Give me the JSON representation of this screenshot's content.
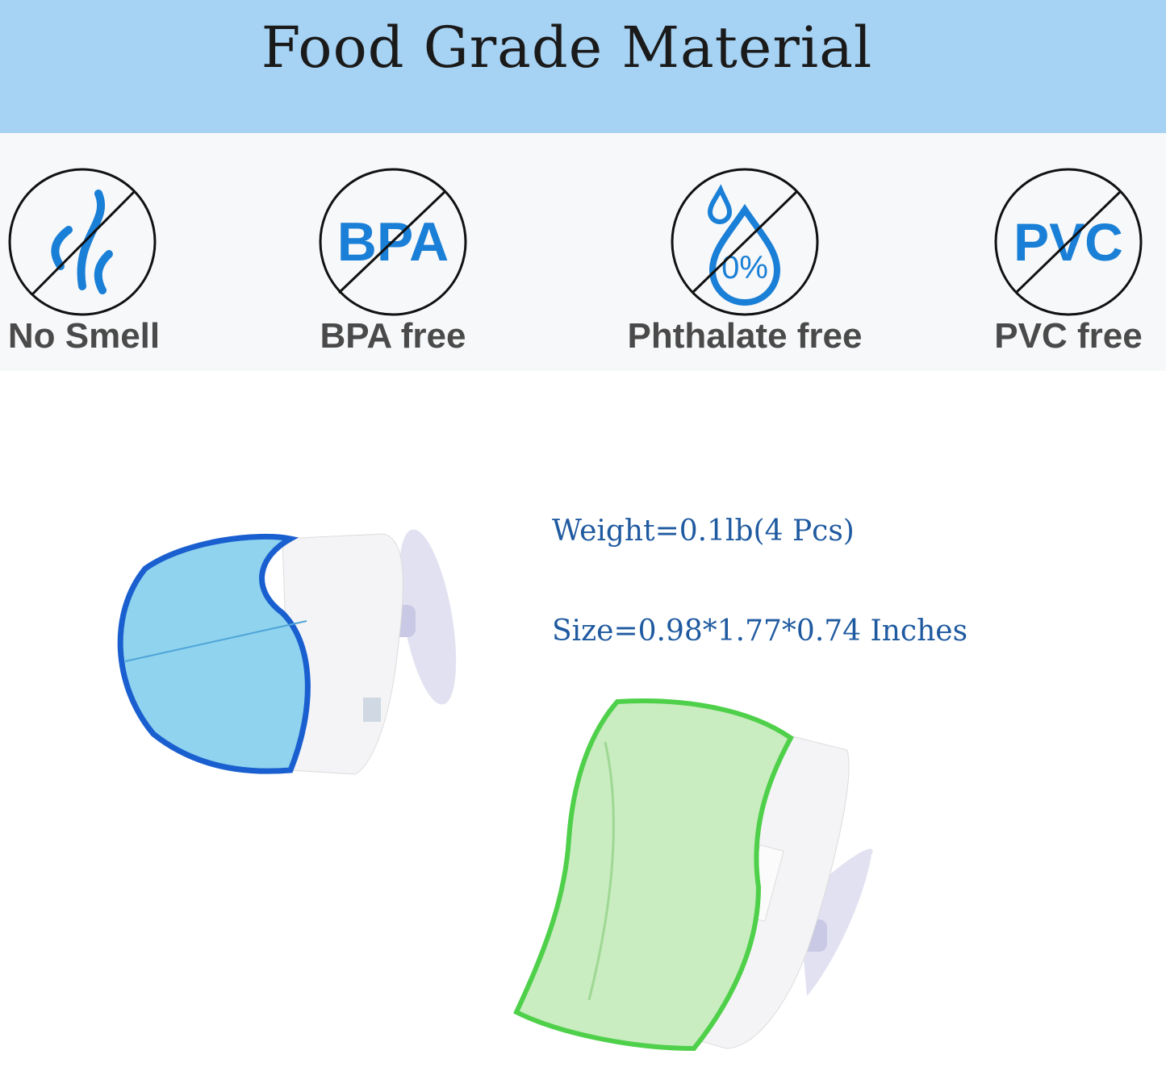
{
  "header": {
    "title": "Food Grade Material",
    "background": "#a6d2f3"
  },
  "badges": [
    {
      "label": "No Smell",
      "icon": "no-smell-icon"
    },
    {
      "label": "BPA free",
      "icon": "no-bpa-icon",
      "glyph": "BPA"
    },
    {
      "label": "Phthalate free",
      "icon": "no-phthalate-icon",
      "glyph": "0%"
    },
    {
      "label": "PVC free",
      "icon": "no-pvc-icon",
      "glyph": "PVC"
    }
  ],
  "specs": {
    "weight": "Weight=0.1lb(4 Pcs)",
    "size": "Size=0.98*1.77*0.74 Inches"
  },
  "colors": {
    "icon_blue": "#1a7fd6",
    "spec_text": "#1f5aa0",
    "label_gray": "#4a4a4a"
  }
}
